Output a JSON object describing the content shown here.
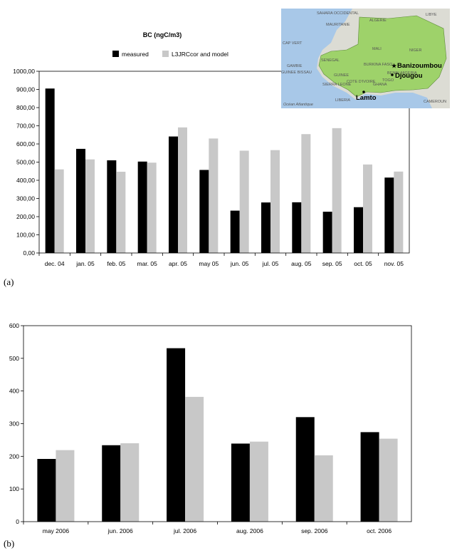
{
  "panels": {
    "a_label": "(a)",
    "b_label": "(b)"
  },
  "legend": {
    "measured": "measured",
    "model": "L3JRCcor and model"
  },
  "colors": {
    "measured": "#000000",
    "model": "#c8c8c8",
    "map_sea": "#a8c8e8",
    "map_region": "#9ed26a",
    "map_land": "#dcdcd4"
  },
  "map": {
    "countries": [
      "SAHARA OCCIDENTAL",
      "MAURITANIE",
      "ALGERIE",
      "LIBYE",
      "MALI",
      "NIGER",
      "CAP VERT",
      "SENEGAL",
      "GAMBIE",
      "GUINEE BISSAU",
      "GUINEE",
      "SIERRA LEONE",
      "LIBERIA",
      "COTE D'IVOIRE",
      "BURKINA FASO",
      "GHANA",
      "TOGO",
      "BENIN",
      "NIGERIA",
      "CAMEROUN"
    ],
    "ocean": "Océan Atlantique",
    "sites": [
      "Banizoumbou",
      "Djougou",
      "Lamto"
    ]
  },
  "chart_data": [
    {
      "type": "bar",
      "title": "BC (ngC/m3)",
      "categories": [
        "dec. 04",
        "jan. 05",
        "feb. 05",
        "mar. 05",
        "apr. 05",
        "may 05",
        "jun. 05",
        "jul. 05",
        "aug. 05",
        "sep. 05",
        "oct. 05",
        "nov. 05"
      ],
      "series": [
        {
          "name": "measured",
          "values": [
            905,
            573,
            510,
            503,
            641,
            457,
            233,
            278,
            279,
            227,
            252,
            415
          ]
        },
        {
          "name": "L3JRCcor and model",
          "values": [
            460,
            515,
            447,
            497,
            691,
            630,
            563,
            566,
            654,
            687,
            487,
            448
          ]
        }
      ],
      "ylim": [
        0,
        1000
      ],
      "yticks": [
        "0,00",
        "100,00",
        "200,00",
        "300,00",
        "400,00",
        "500,00",
        "600,00",
        "700,00",
        "800,00",
        "900,00",
        "1000,00"
      ],
      "grid": false,
      "legend_position": "top"
    },
    {
      "type": "bar",
      "categories": [
        "may 2006",
        "jun. 2006",
        "jul. 2006",
        "aug. 2006",
        "sep. 2006",
        "oct. 2006"
      ],
      "series": [
        {
          "values": [
            192,
            234,
            531,
            239,
            320,
            274
          ]
        },
        {
          "values": [
            219,
            240,
            382,
            245,
            203,
            254
          ]
        }
      ],
      "ylim": [
        0,
        600
      ],
      "yticks": [
        "0",
        "100",
        "200",
        "300",
        "400",
        "500",
        "600"
      ],
      "grid": false
    }
  ]
}
